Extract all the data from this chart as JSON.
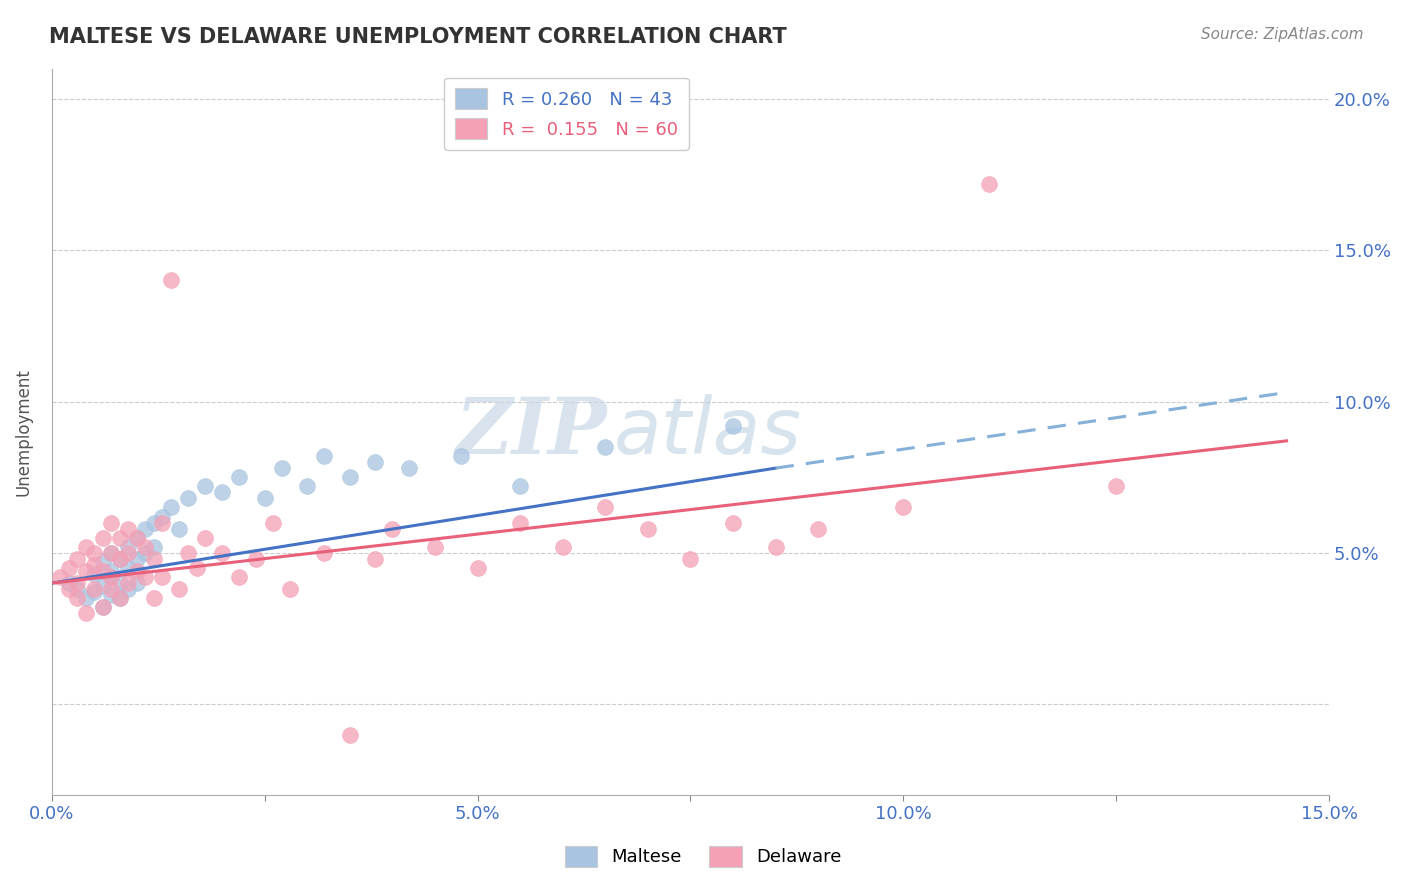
{
  "title": "MALTESE VS DELAWARE UNEMPLOYMENT CORRELATION CHART",
  "source": "Source: ZipAtlas.com",
  "ylabel": "Unemployment",
  "xlim": [
    0,
    0.15
  ],
  "ylim": [
    -0.03,
    0.21
  ],
  "xticks": [
    0.0,
    0.025,
    0.05,
    0.075,
    0.1,
    0.125,
    0.15
  ],
  "xticklabels": [
    "0.0%",
    "",
    "5.0%",
    "",
    "10.0%",
    "",
    "15.0%"
  ],
  "yticks": [
    0.0,
    0.05,
    0.1,
    0.15,
    0.2
  ],
  "yticklabels": [
    "",
    "5.0%",
    "10.0%",
    "15.0%",
    "20.0%"
  ],
  "legend_r1": "R = 0.260",
  "legend_n1": "N = 43",
  "legend_r2": "R =  0.155",
  "legend_n2": "N = 60",
  "maltese_color": "#a8c4e0",
  "delaware_color": "#f4a0b5",
  "trend_blue": "#4472c4",
  "trend_pink": "#e8607a",
  "trend_blue_dashed": "#85b0d8",
  "watermark_zip": "ZIP",
  "watermark_atlas": "atlas",
  "maltese_x": [
    0.002,
    0.003,
    0.004,
    0.005,
    0.005,
    0.006,
    0.006,
    0.006,
    0.007,
    0.007,
    0.007,
    0.007,
    0.008,
    0.008,
    0.008,
    0.009,
    0.009,
    0.009,
    0.01,
    0.01,
    0.01,
    0.011,
    0.011,
    0.012,
    0.012,
    0.013,
    0.014,
    0.015,
    0.016,
    0.018,
    0.02,
    0.022,
    0.025,
    0.027,
    0.03,
    0.032,
    0.035,
    0.038,
    0.042,
    0.048,
    0.055,
    0.065,
    0.08
  ],
  "maltese_y": [
    0.04,
    0.038,
    0.035,
    0.043,
    0.037,
    0.047,
    0.039,
    0.032,
    0.044,
    0.036,
    0.05,
    0.042,
    0.048,
    0.04,
    0.035,
    0.052,
    0.045,
    0.038,
    0.055,
    0.048,
    0.04,
    0.058,
    0.05,
    0.06,
    0.052,
    0.062,
    0.065,
    0.058,
    0.068,
    0.072,
    0.07,
    0.075,
    0.068,
    0.078,
    0.072,
    0.082,
    0.075,
    0.08,
    0.078,
    0.082,
    0.072,
    0.085,
    0.092
  ],
  "delaware_x": [
    0.001,
    0.002,
    0.002,
    0.003,
    0.003,
    0.003,
    0.004,
    0.004,
    0.004,
    0.005,
    0.005,
    0.005,
    0.006,
    0.006,
    0.006,
    0.007,
    0.007,
    0.007,
    0.007,
    0.008,
    0.008,
    0.008,
    0.009,
    0.009,
    0.009,
    0.01,
    0.01,
    0.011,
    0.011,
    0.012,
    0.012,
    0.013,
    0.013,
    0.014,
    0.015,
    0.016,
    0.017,
    0.018,
    0.02,
    0.022,
    0.024,
    0.026,
    0.028,
    0.032,
    0.035,
    0.038,
    0.04,
    0.045,
    0.05,
    0.055,
    0.06,
    0.065,
    0.07,
    0.075,
    0.08,
    0.085,
    0.09,
    0.1,
    0.11,
    0.125
  ],
  "delaware_y": [
    0.042,
    0.038,
    0.045,
    0.035,
    0.048,
    0.04,
    0.03,
    0.044,
    0.052,
    0.038,
    0.046,
    0.05,
    0.032,
    0.044,
    0.055,
    0.038,
    0.042,
    0.05,
    0.06,
    0.035,
    0.048,
    0.055,
    0.04,
    0.05,
    0.058,
    0.044,
    0.055,
    0.042,
    0.052,
    0.035,
    0.048,
    0.06,
    0.042,
    0.14,
    0.038,
    0.05,
    0.045,
    0.055,
    0.05,
    0.042,
    0.048,
    0.06,
    0.038,
    0.05,
    -0.01,
    0.048,
    0.058,
    0.052,
    0.045,
    0.06,
    0.052,
    0.065,
    0.058,
    0.048,
    0.06,
    0.052,
    0.058,
    0.065,
    0.172,
    0.072
  ],
  "trend_blue_x_start": 0.0,
  "trend_blue_x_solid_end": 0.085,
  "trend_blue_x_dash_end": 0.145,
  "trend_blue_y_start": 0.04,
  "trend_blue_y_solid_end": 0.078,
  "trend_blue_y_dash_end": 0.103,
  "trend_pink_x_start": 0.0,
  "trend_pink_x_end": 0.145,
  "trend_pink_y_start": 0.04,
  "trend_pink_y_end": 0.087
}
